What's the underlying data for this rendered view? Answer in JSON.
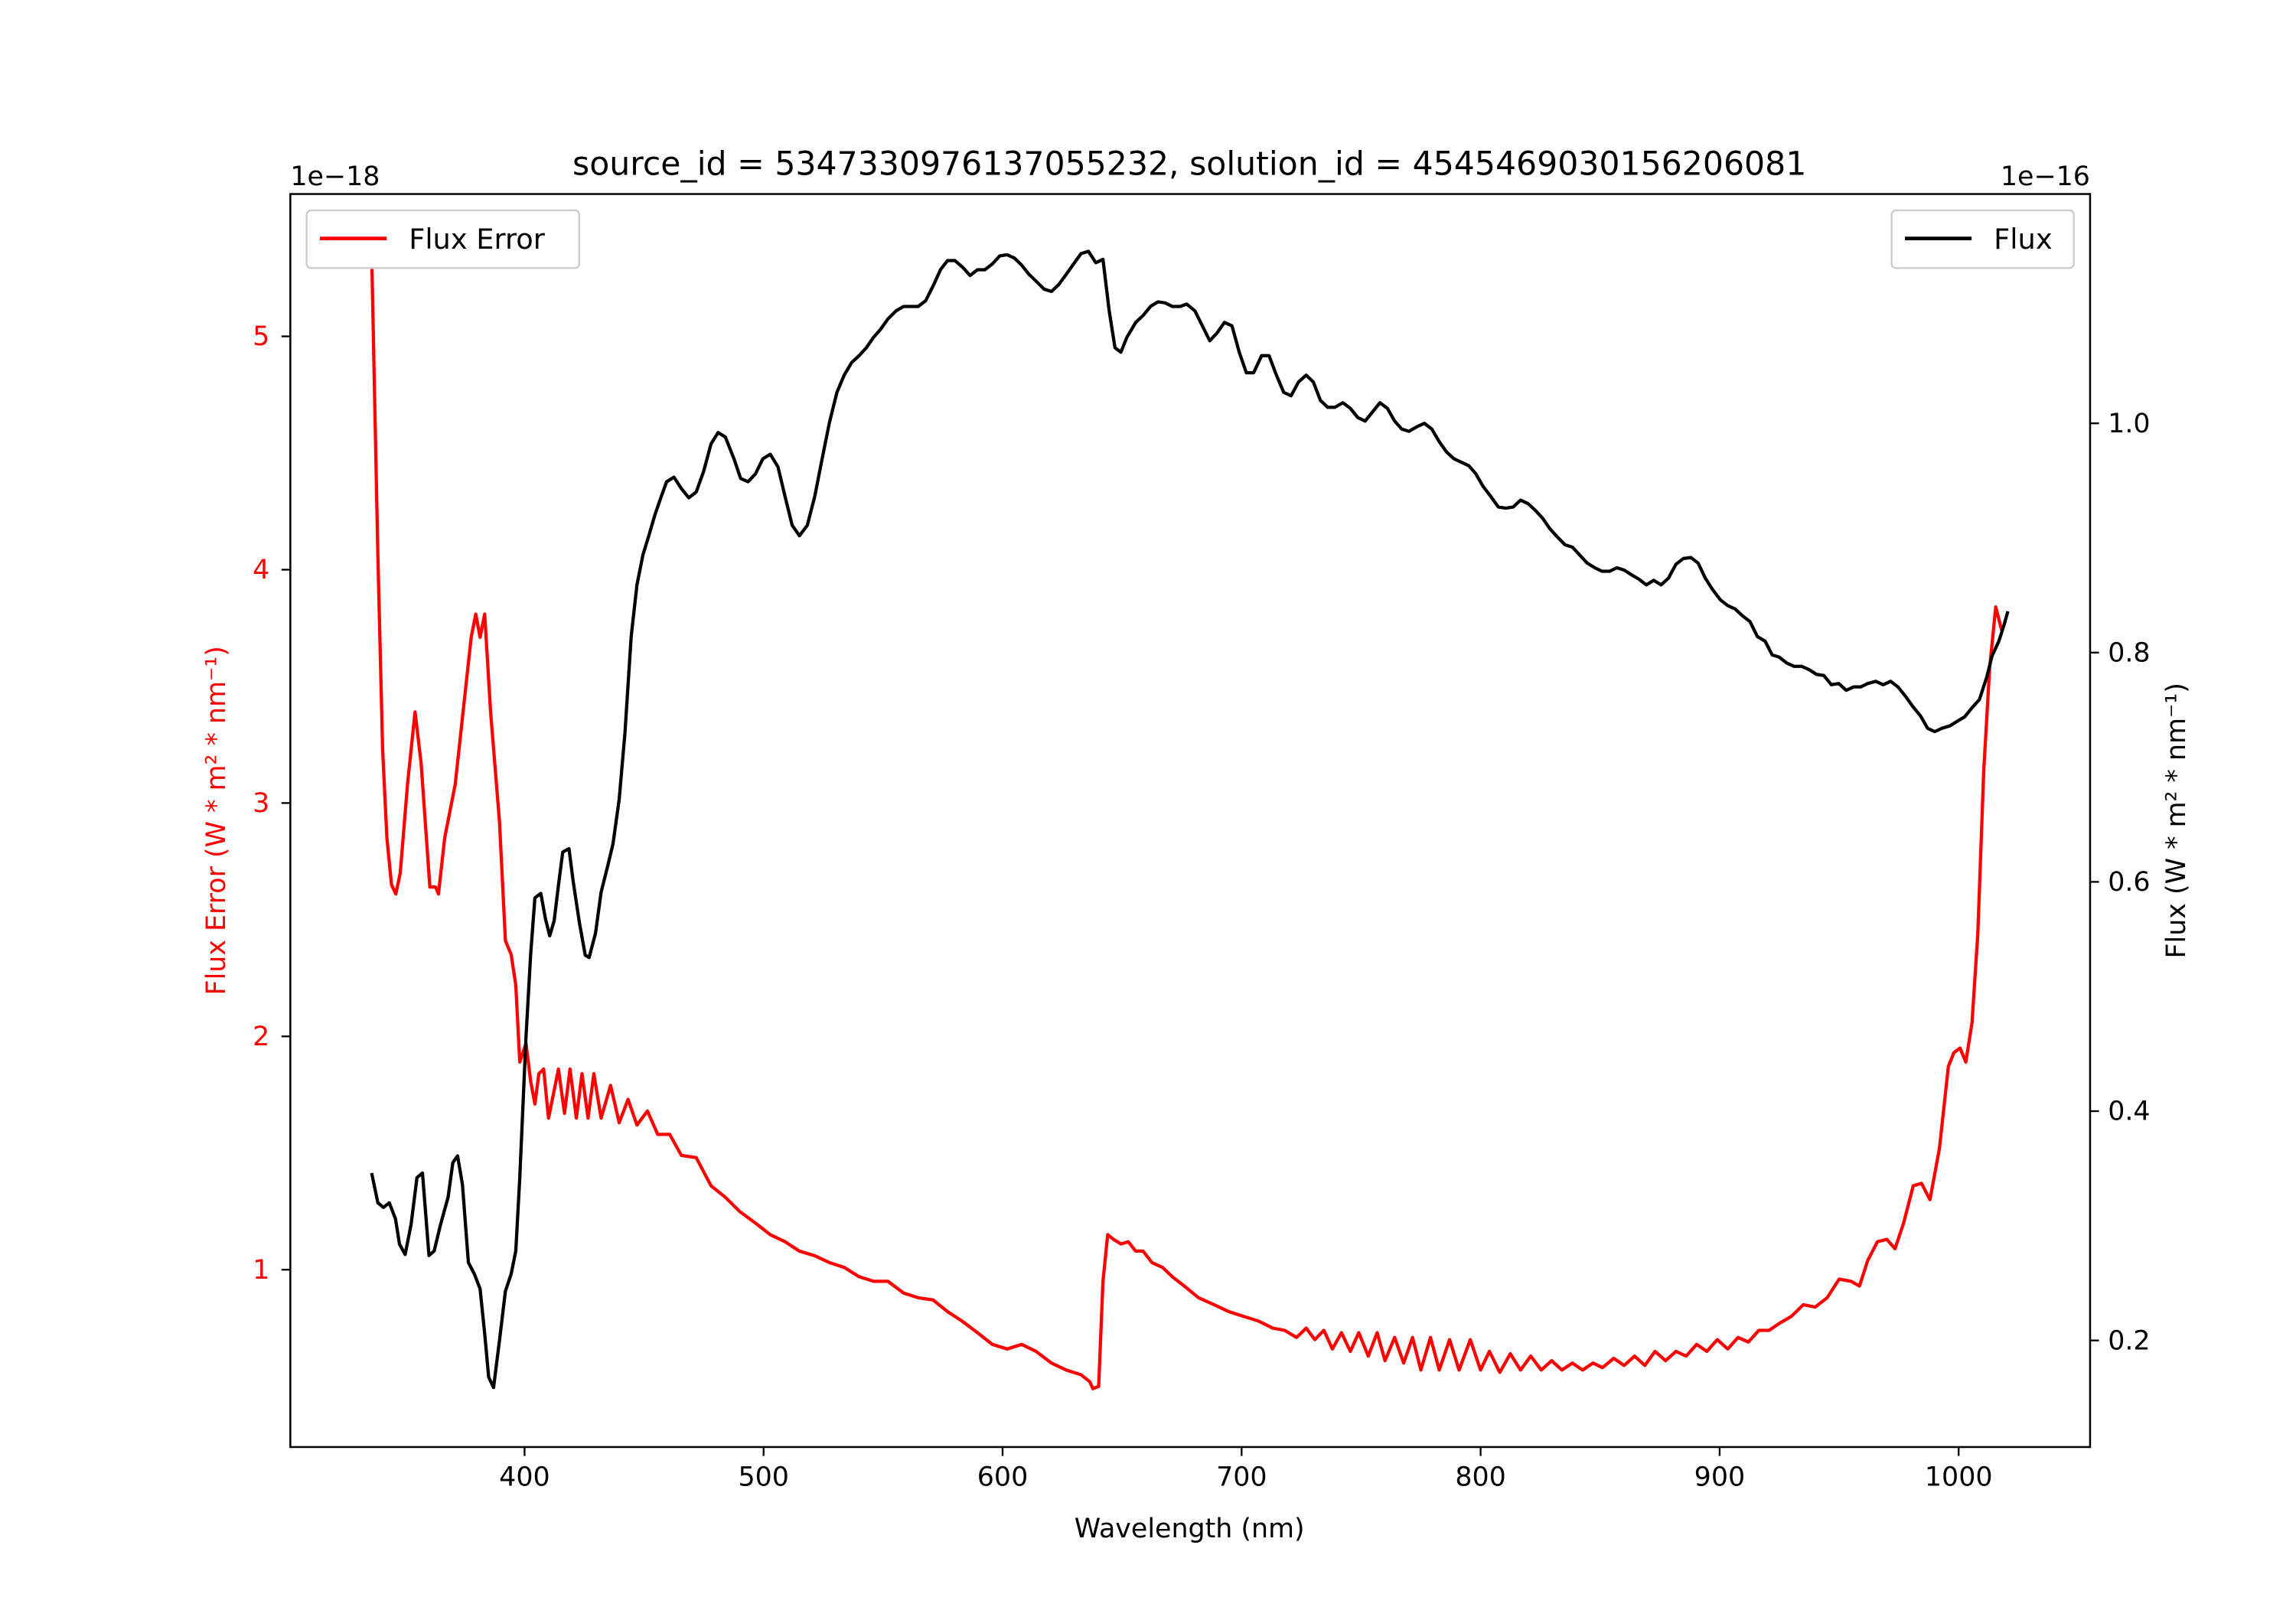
{
  "chart_data": {
    "type": "line",
    "title": "source_id = 5347330976137055232, solution_id = 4545469030156206081",
    "xlabel": "Wavelength (nm)",
    "ylabel_left": "Flux Error (W * m² * nm⁻¹)",
    "ylabel_right": "Flux (W * m² * nm⁻¹)",
    "offset_left": "1e−18",
    "offset_right": "1e−16",
    "xlim": [
      302,
      1055
    ],
    "ylim_left": [
      0.24,
      5.61
    ],
    "ylim_right": [
      0.107,
      1.2
    ],
    "xticks": [
      400,
      500,
      600,
      700,
      800,
      900,
      1000
    ],
    "yticks_left": [
      1,
      2,
      3,
      4,
      5
    ],
    "yticks_right": [
      0.2,
      0.4,
      0.6,
      0.8,
      1.0
    ],
    "ytick_labels_right": [
      "0.2",
      "0.4",
      "0.6",
      "0.8",
      "1.0"
    ],
    "grid": false,
    "colors": {
      "error": "#ff0000",
      "flux": "#000000"
    },
    "series": [
      {
        "name": "Flux Error",
        "axis": "left",
        "legend": "top-left",
        "color": "#ff0000",
        "x": [
          336,
          338.6,
          340.6,
          342.4,
          344.3,
          346.1,
          348,
          351,
          354.2,
          356.7,
          360.4,
          362.8,
          364,
          366.6,
          371,
          375,
          377.7,
          379.6,
          381.4,
          383.3,
          385.8,
          389.5,
          392,
          394.4,
          396.3,
          398,
          400.6,
          402.5,
          404.3,
          406,
          408,
          410,
          411.8,
          414.2,
          416.7,
          419,
          421.7,
          424,
          426.6,
          429,
          432,
          436,
          439.6,
          443.3,
          447,
          451.4,
          455.7,
          460.7,
          465.6,
          471.8,
          478,
          484,
          490,
          496.6,
          502.8,
          509,
          515,
          521.4,
          527.6,
          533.7,
          540,
          546,
          552,
          558.6,
          564.7,
          570.9,
          577,
          583,
          589.5,
          595.7,
          601.9,
          608,
          614,
          620.4,
          626.6,
          632.8,
          636.5,
          637.8,
          640.2,
          642,
          644,
          646.4,
          649.5,
          652.6,
          655.7,
          658.8,
          662.5,
          666.9,
          671,
          676,
          682,
          688.5,
          694.7,
          700.9,
          707,
          713,
          718,
          723,
          727,
          730.6,
          734.4,
          738,
          741.8,
          745.5,
          749,
          753,
          756.7,
          760,
          764,
          767.8,
          771.5,
          775,
          779,
          782.7,
          787,
          791,
          795.7,
          800,
          803.7,
          808,
          812.4,
          816.7,
          821,
          825.4,
          829.7,
          834,
          838.4,
          842.7,
          847,
          851,
          855.7,
          860,
          864.4,
          868.7,
          873,
          877.4,
          881.7,
          886,
          890.4,
          894.7,
          899,
          903.4,
          907.7,
          912,
          916.4,
          920.7,
          925,
          930,
          935,
          940,
          945,
          950,
          955,
          958.5,
          962,
          966,
          970,
          973.4,
          977,
          981,
          984.5,
          988,
          992,
          995.7,
          998,
          1000.6,
          1003,
          1005.6,
          1008,
          1010.5,
          1013,
          1015.5,
          1018
        ],
        "y": [
          5.36,
          4.06,
          3.23,
          2.85,
          2.65,
          2.61,
          2.7,
          3.08,
          3.39,
          3.17,
          2.64,
          2.64,
          2.61,
          2.85,
          3.08,
          3.46,
          3.71,
          3.81,
          3.71,
          3.81,
          3.39,
          2.92,
          2.41,
          2.35,
          2.22,
          1.89,
          1.97,
          1.81,
          1.71,
          1.84,
          1.86,
          1.65,
          1.74,
          1.86,
          1.67,
          1.86,
          1.65,
          1.84,
          1.65,
          1.84,
          1.65,
          1.79,
          1.63,
          1.73,
          1.62,
          1.68,
          1.58,
          1.58,
          1.49,
          1.48,
          1.36,
          1.31,
          1.25,
          1.2,
          1.15,
          1.12,
          1.08,
          1.06,
          1.03,
          1.01,
          0.97,
          0.95,
          0.95,
          0.9,
          0.88,
          0.87,
          0.82,
          0.78,
          0.73,
          0.68,
          0.66,
          0.68,
          0.65,
          0.6,
          0.57,
          0.55,
          0.52,
          0.49,
          0.5,
          0.95,
          1.15,
          1.13,
          1.11,
          1.12,
          1.08,
          1.08,
          1.03,
          1.01,
          0.97,
          0.93,
          0.88,
          0.85,
          0.82,
          0.8,
          0.78,
          0.75,
          0.74,
          0.71,
          0.75,
          0.7,
          0.74,
          0.66,
          0.73,
          0.65,
          0.73,
          0.63,
          0.73,
          0.61,
          0.71,
          0.6,
          0.71,
          0.57,
          0.71,
          0.57,
          0.7,
          0.57,
          0.7,
          0.57,
          0.65,
          0.56,
          0.64,
          0.57,
          0.63,
          0.57,
          0.61,
          0.57,
          0.6,
          0.57,
          0.6,
          0.58,
          0.62,
          0.59,
          0.63,
          0.59,
          0.65,
          0.61,
          0.65,
          0.63,
          0.68,
          0.65,
          0.7,
          0.66,
          0.71,
          0.69,
          0.74,
          0.74,
          0.77,
          0.8,
          0.85,
          0.84,
          0.88,
          0.96,
          0.95,
          0.93,
          1.04,
          1.12,
          1.13,
          1.09,
          1.2,
          1.36,
          1.37,
          1.3,
          1.52,
          1.87,
          1.93,
          1.95,
          1.89,
          2.06,
          2.44,
          3.14,
          3.58,
          3.84,
          3.74
        ]
      },
      {
        "name": "Flux",
        "axis": "right",
        "legend": "top-right",
        "color": "#000000",
        "x": [
          336,
          338.6,
          341,
          343.4,
          346,
          347.7,
          350,
          352.5,
          355,
          357.3,
          360,
          362.2,
          364.7,
          368,
          370,
          372,
          374,
          376.5,
          379,
          381.4,
          383.3,
          385,
          387,
          389.5,
          392,
          394.4,
          396.3,
          398,
          400.6,
          402.5,
          404.3,
          406.8,
          408.7,
          410.5,
          412.4,
          414.2,
          416,
          418.6,
          420.4,
          423,
          425.4,
          427,
          429.7,
          432,
          434.7,
          437,
          439.6,
          442,
          444.6,
          447,
          449.5,
          452,
          454.5,
          457,
          459.4,
          462.5,
          465.6,
          468.7,
          471.8,
          474.9,
          478,
          481,
          484,
          487.6,
          490.4,
          493.5,
          496.6,
          499.7,
          502.8,
          506,
          509,
          512,
          515,
          518.3,
          521.4,
          524.5,
          527.6,
          530.7,
          533.7,
          536.8,
          540,
          543,
          546,
          549,
          552,
          555.4,
          558.6,
          561.6,
          564.7,
          567.8,
          571,
          574,
          577,
          580,
          583.3,
          586.4,
          589.5,
          592.6,
          595.7,
          598.8,
          601.9,
          605,
          608,
          611,
          614,
          617.3,
          620.4,
          623.5,
          626.6,
          629.7,
          632.8,
          635.9,
          639,
          642,
          644.6,
          647,
          649.5,
          652,
          655.7,
          658.8,
          661.9,
          665,
          668,
          671,
          674.3,
          677,
          680.5,
          683.6,
          686.7,
          689.8,
          692.8,
          696,
          699,
          702,
          705,
          708.4,
          711.5,
          714.6,
          717.6,
          720.7,
          723.8,
          727,
          730,
          733,
          736,
          739,
          742.4,
          745.5,
          748.6,
          751.7,
          754.8,
          757.9,
          761,
          764,
          767,
          770,
          773.4,
          776.5,
          779.6,
          782.7,
          785.8,
          788.9,
          792,
          795,
          798,
          801,
          804.3,
          807.4,
          810.5,
          813.6,
          816.7,
          819.8,
          822.9,
          826,
          829,
          832,
          835.3,
          838.4,
          841.5,
          844.6,
          847.7,
          850.8,
          854,
          857,
          860,
          863,
          866.3,
          869.3,
          872.4,
          875.5,
          878.6,
          881.7,
          884.8,
          888,
          891,
          894,
          897,
          900.3,
          903.4,
          906.5,
          909.6,
          912.7,
          915.8,
          919,
          922,
          925,
          928,
          931.2,
          934.4,
          937.5,
          940.5,
          943.6,
          946.7,
          949.8,
          953,
          956,
          959,
          962,
          965.3,
          968.4,
          971.5,
          974.6,
          977.7,
          980.8,
          984,
          987,
          990,
          993,
          996.3,
          999.4,
          1002.5,
          1005.6,
          1008.7,
          1011.8,
          1014,
          1016.8,
          1019,
          1020.6
        ],
        "y": [
          0.346,
          0.32,
          0.316,
          0.32,
          0.306,
          0.284,
          0.275,
          0.301,
          0.342,
          0.346,
          0.274,
          0.278,
          0.3,
          0.325,
          0.355,
          0.361,
          0.336,
          0.268,
          0.258,
          0.245,
          0.206,
          0.168,
          0.159,
          0.2,
          0.243,
          0.258,
          0.278,
          0.342,
          0.465,
          0.536,
          0.586,
          0.59,
          0.568,
          0.553,
          0.566,
          0.597,
          0.626,
          0.629,
          0.6,
          0.564,
          0.536,
          0.534,
          0.555,
          0.591,
          0.613,
          0.633,
          0.672,
          0.73,
          0.814,
          0.859,
          0.885,
          0.902,
          0.92,
          0.935,
          0.949,
          0.953,
          0.943,
          0.935,
          0.94,
          0.958,
          0.982,
          0.992,
          0.988,
          0.969,
          0.952,
          0.949,
          0.956,
          0.969,
          0.973,
          0.962,
          0.936,
          0.911,
          0.902,
          0.911,
          0.936,
          0.969,
          1.001,
          1.027,
          1.042,
          1.053,
          1.059,
          1.066,
          1.075,
          1.082,
          1.091,
          1.098,
          1.102,
          1.102,
          1.102,
          1.107,
          1.12,
          1.134,
          1.142,
          1.142,
          1.136,
          1.129,
          1.134,
          1.134,
          1.139,
          1.146,
          1.147,
          1.144,
          1.138,
          1.13,
          1.124,
          1.117,
          1.115,
          1.121,
          1.13,
          1.139,
          1.148,
          1.15,
          1.14,
          1.143,
          1.098,
          1.066,
          1.062,
          1.075,
          1.088,
          1.094,
          1.102,
          1.106,
          1.105,
          1.102,
          1.102,
          1.104,
          1.098,
          1.085,
          1.072,
          1.079,
          1.088,
          1.085,
          1.062,
          1.044,
          1.044,
          1.059,
          1.059,
          1.042,
          1.027,
          1.024,
          1.036,
          1.042,
          1.036,
          1.02,
          1.014,
          1.014,
          1.018,
          1.013,
          1.005,
          1.002,
          1.01,
          1.018,
          1.013,
          1.002,
          0.995,
          0.993,
          0.997,
          1.0,
          0.995,
          0.984,
          0.975,
          0.969,
          0.966,
          0.963,
          0.956,
          0.945,
          0.936,
          0.927,
          0.926,
          0.927,
          0.933,
          0.93,
          0.924,
          0.917,
          0.908,
          0.901,
          0.894,
          0.892,
          0.885,
          0.878,
          0.874,
          0.871,
          0.871,
          0.874,
          0.872,
          0.868,
          0.864,
          0.859,
          0.863,
          0.859,
          0.865,
          0.877,
          0.882,
          0.883,
          0.878,
          0.865,
          0.855,
          0.846,
          0.841,
          0.838,
          0.832,
          0.827,
          0.814,
          0.81,
          0.798,
          0.796,
          0.791,
          0.788,
          0.788,
          0.785,
          0.781,
          0.78,
          0.772,
          0.773,
          0.767,
          0.77,
          0.77,
          0.773,
          0.775,
          0.772,
          0.775,
          0.77,
          0.762,
          0.753,
          0.745,
          0.734,
          0.731,
          0.734,
          0.736,
          0.74,
          0.744,
          0.752,
          0.759,
          0.779,
          0.797,
          0.81,
          0.824,
          0.836
        ]
      }
    ]
  }
}
